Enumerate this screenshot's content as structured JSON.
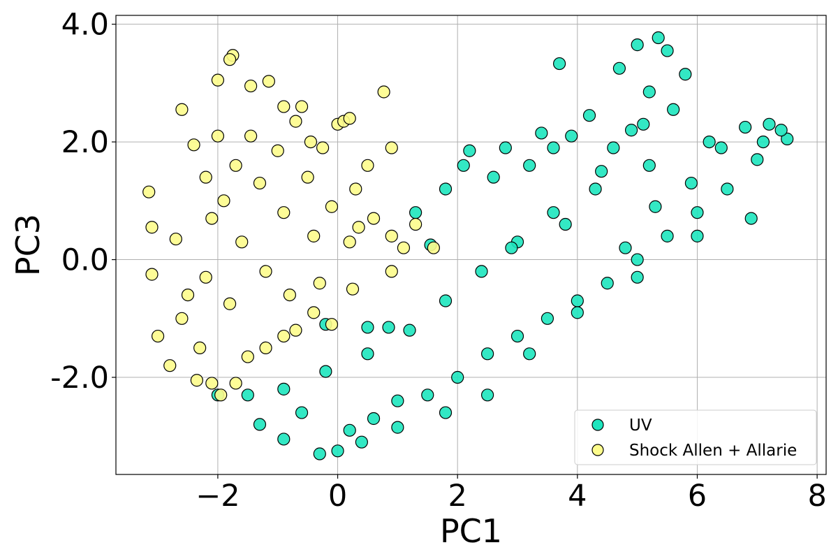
{
  "chart_data": {
    "type": "scatter",
    "title": "",
    "xlabel": "PC1",
    "ylabel": "PC3",
    "xlim": [
      -3.7,
      8.15
    ],
    "ylim": [
      -3.65,
      4.15
    ],
    "xticks": [
      -2,
      0,
      2,
      4,
      6,
      8
    ],
    "xtick_labels": [
      "−2",
      "0",
      "2",
      "4",
      "6",
      "8"
    ],
    "yticks": [
      -2.0,
      0.0,
      2.0,
      4.0
    ],
    "ytick_labels": [
      "-2.0",
      "0.0",
      "2.0",
      "4.0"
    ],
    "grid": true,
    "legend_position": "lower right",
    "series": [
      {
        "name": "UV",
        "color": "#1de5be",
        "edge_color": "#000000",
        "points": [
          [
            0.0,
            -3.25
          ],
          [
            -0.3,
            -3.3
          ],
          [
            -0.9,
            -3.05
          ],
          [
            -1.3,
            -2.8
          ],
          [
            -0.6,
            -2.6
          ],
          [
            0.2,
            -2.9
          ],
          [
            0.6,
            -2.7
          ],
          [
            1.0,
            -2.4
          ],
          [
            1.5,
            -2.3
          ],
          [
            2.0,
            -2.0
          ],
          [
            2.5,
            -1.6
          ],
          [
            3.0,
            -1.3
          ],
          [
            3.5,
            -1.0
          ],
          [
            4.0,
            -0.7
          ],
          [
            4.5,
            -0.4
          ],
          [
            5.0,
            0.0
          ],
          [
            5.5,
            0.4
          ],
          [
            6.0,
            0.8
          ],
          [
            6.5,
            1.2
          ],
          [
            7.0,
            1.7
          ],
          [
            7.5,
            2.05
          ],
          [
            7.2,
            2.3
          ],
          [
            6.2,
            2.0
          ],
          [
            5.2,
            1.6
          ],
          [
            4.3,
            1.2
          ],
          [
            3.6,
            0.8
          ],
          [
            3.0,
            0.3
          ],
          [
            2.4,
            -0.2
          ],
          [
            1.8,
            -0.7
          ],
          [
            1.2,
            -1.2
          ],
          [
            0.5,
            -1.6
          ],
          [
            -0.2,
            -1.9
          ],
          [
            -0.9,
            -2.2
          ],
          [
            -1.5,
            -2.3
          ],
          [
            -2.0,
            -2.3
          ],
          [
            3.7,
            3.33
          ],
          [
            4.7,
            3.25
          ],
          [
            5.0,
            3.65
          ],
          [
            5.35,
            3.77
          ],
          [
            5.5,
            3.55
          ],
          [
            5.8,
            3.15
          ],
          [
            5.2,
            2.85
          ],
          [
            5.6,
            2.55
          ],
          [
            4.2,
            2.45
          ],
          [
            4.9,
            2.2
          ],
          [
            3.4,
            2.15
          ],
          [
            3.9,
            2.1
          ],
          [
            2.2,
            1.85
          ],
          [
            2.8,
            1.9
          ],
          [
            3.6,
            1.9
          ],
          [
            1.8,
            1.2
          ],
          [
            1.3,
            0.8
          ],
          [
            2.1,
            1.6
          ],
          [
            2.6,
            1.4
          ],
          [
            3.2,
            1.6
          ],
          [
            4.6,
            1.9
          ],
          [
            5.1,
            2.3
          ],
          [
            6.8,
            2.25
          ],
          [
            7.4,
            2.2
          ],
          [
            6.9,
            0.7
          ],
          [
            6.0,
            0.4
          ],
          [
            5.0,
            -0.3
          ],
          [
            4.0,
            -0.9
          ],
          [
            3.2,
            -1.6
          ],
          [
            2.5,
            -2.3
          ],
          [
            1.8,
            -2.6
          ],
          [
            1.0,
            -2.85
          ],
          [
            0.4,
            -3.1
          ],
          [
            -0.2,
            -1.1
          ],
          [
            0.5,
            -1.15
          ],
          [
            0.85,
            -1.15
          ],
          [
            1.55,
            0.25
          ],
          [
            2.9,
            0.2
          ],
          [
            3.8,
            0.6
          ],
          [
            4.4,
            1.5
          ],
          [
            5.9,
            1.3
          ],
          [
            6.4,
            1.9
          ],
          [
            7.1,
            2.0
          ],
          [
            5.3,
            0.9
          ],
          [
            4.8,
            0.2
          ]
        ]
      },
      {
        "name": "Shock Allen + Allarie",
        "color": "#fdfc8c",
        "edge_color": "#000000",
        "points": [
          [
            -3.15,
            1.15
          ],
          [
            -3.1,
            0.55
          ],
          [
            -3.1,
            -0.25
          ],
          [
            -3.0,
            -1.3
          ],
          [
            -2.8,
            -1.8
          ],
          [
            -2.6,
            2.55
          ],
          [
            -2.4,
            1.95
          ],
          [
            -2.2,
            1.4
          ],
          [
            -2.1,
            0.7
          ],
          [
            -2.5,
            -0.6
          ],
          [
            -2.3,
            -1.5
          ],
          [
            -2.1,
            -2.1
          ],
          [
            -1.95,
            -2.3
          ],
          [
            -1.7,
            -2.1
          ],
          [
            -2.0,
            3.05
          ],
          [
            -1.75,
            3.47
          ],
          [
            -1.8,
            3.4
          ],
          [
            -1.45,
            2.95
          ],
          [
            -1.15,
            3.03
          ],
          [
            -0.9,
            2.6
          ],
          [
            -0.6,
            2.6
          ],
          [
            -0.7,
            2.35
          ],
          [
            -0.45,
            2.0
          ],
          [
            -0.25,
            1.9
          ],
          [
            0.0,
            2.3
          ],
          [
            0.1,
            2.35
          ],
          [
            0.2,
            2.4
          ],
          [
            0.77,
            2.85
          ],
          [
            0.9,
            1.9
          ],
          [
            0.5,
            1.6
          ],
          [
            0.3,
            1.2
          ],
          [
            0.6,
            0.7
          ],
          [
            1.3,
            0.6
          ],
          [
            1.6,
            0.2
          ],
          [
            0.9,
            0.4
          ],
          [
            0.2,
            0.3
          ],
          [
            -0.4,
            0.4
          ],
          [
            -0.9,
            0.8
          ],
          [
            -1.3,
            1.3
          ],
          [
            -1.7,
            1.6
          ],
          [
            -2.0,
            2.1
          ],
          [
            -1.6,
            0.3
          ],
          [
            -1.2,
            -0.2
          ],
          [
            -0.8,
            -0.6
          ],
          [
            -0.4,
            -0.9
          ],
          [
            -0.1,
            -1.1
          ],
          [
            -0.9,
            -1.3
          ],
          [
            -1.2,
            -1.5
          ],
          [
            -0.7,
            -1.2
          ],
          [
            -0.3,
            -0.4
          ],
          [
            0.25,
            -0.5
          ],
          [
            0.9,
            -0.2
          ],
          [
            1.1,
            0.2
          ],
          [
            -1.45,
            2.1
          ],
          [
            -1.0,
            1.85
          ],
          [
            -0.5,
            1.4
          ],
          [
            -0.1,
            0.9
          ],
          [
            0.35,
            0.55
          ],
          [
            -2.7,
            0.35
          ],
          [
            -2.6,
            -1.0
          ],
          [
            -2.35,
            -2.05
          ],
          [
            -1.5,
            -1.65
          ],
          [
            -1.8,
            -0.75
          ],
          [
            -2.2,
            -0.3
          ],
          [
            -1.9,
            1.0
          ]
        ]
      }
    ]
  }
}
